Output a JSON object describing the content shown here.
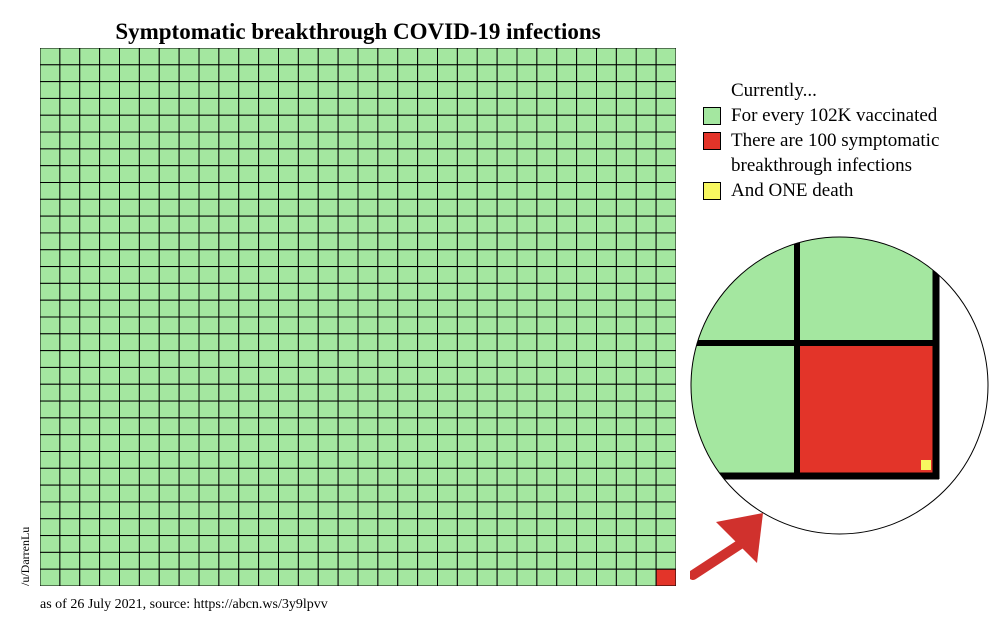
{
  "chart_data": {
    "type": "waffle",
    "title": "Symptomatic breakthrough COVID-19 infections",
    "grid": {
      "rows": 32,
      "cols": 32,
      "total_cells": 1024
    },
    "counts": {
      "vaccinated": 102000,
      "symptomatic_breakthrough_infections": 100,
      "deaths": 1
    },
    "legend": {
      "header": "Currently...",
      "items": [
        {
          "key": "vaccinated",
          "label": "For every 102K vaccinated",
          "color": "#a4e7a0"
        },
        {
          "key": "infections",
          "label": "There are 100 symptomatic breakthrough infections",
          "color": "#e33429"
        },
        {
          "key": "death",
          "label": "And ONE death",
          "color": "#f7f760"
        }
      ],
      "position": "right"
    },
    "highlight": {
      "cell": "bottom-right",
      "color": "#e33429",
      "magnified": true
    },
    "arrow_color": "#d0312d"
  },
  "credit": "/u/DarrenLu",
  "footnote": "as of 26 July 2021, source: https://abcn.ws/3y9lpvv"
}
